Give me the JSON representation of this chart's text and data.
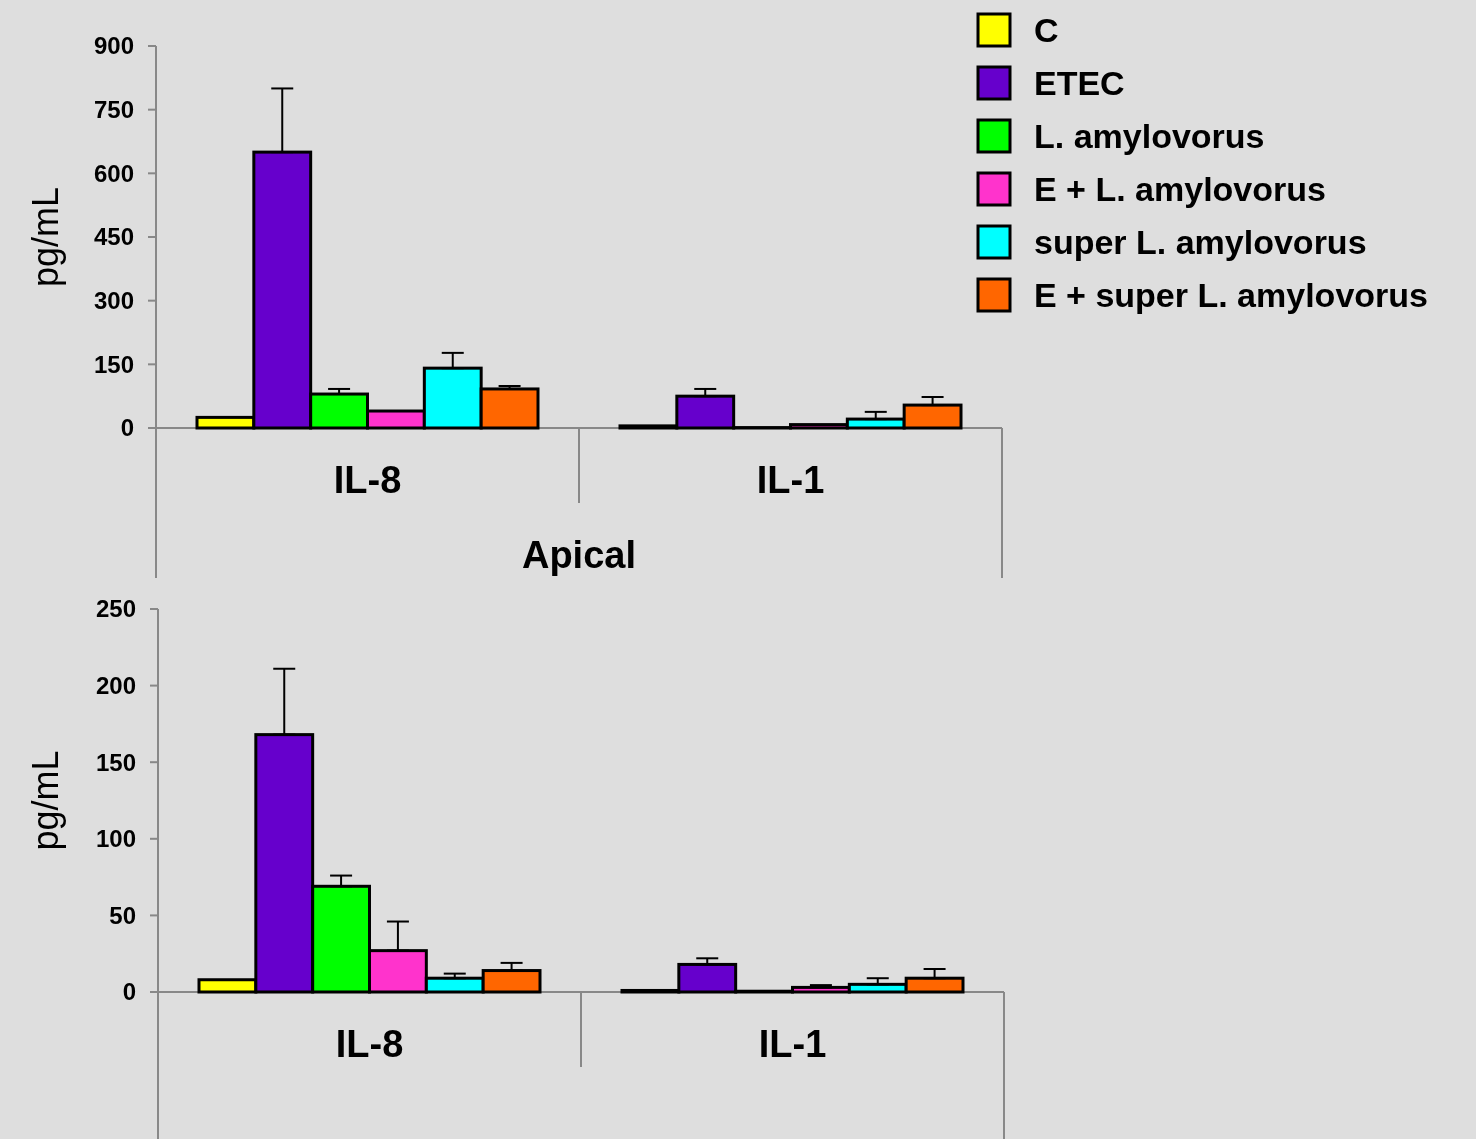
{
  "chart_data": [
    {
      "type": "bar",
      "xlabel": "Apical",
      "ylabel": "pg/mL",
      "categories": [
        "IL-8",
        "IL-1"
      ],
      "ylim": [
        0,
        900
      ],
      "yticks": [
        0,
        150,
        300,
        450,
        600,
        750,
        900
      ],
      "legend": "right",
      "grid": false,
      "series": [
        {
          "name": "C",
          "color": "#ffff00",
          "values": [
            25,
            5
          ],
          "errors": [
            null,
            null
          ]
        },
        {
          "name": "ETEC",
          "color": "#6600cc",
          "values": [
            650,
            75
          ],
          "errors": [
            [
              650,
              800
            ],
            [
              75,
              92
            ]
          ]
        },
        {
          "name": "L. amylovorus",
          "color": "#00ff00",
          "values": [
            80,
            1
          ],
          "errors": [
            [
              80,
              92
            ],
            null
          ]
        },
        {
          "name": "E + L. amylovorus",
          "color": "#ff33cc",
          "values": [
            40,
            8
          ],
          "errors": [
            null,
            null
          ]
        },
        {
          "name": "super  L. amylovorus",
          "color": "#00ffff",
          "values": [
            141,
            21
          ],
          "errors": [
            [
              141,
              177
            ],
            [
              21,
              38
            ]
          ]
        },
        {
          "name": "E + super L. amylovorus",
          "color": "#ff6600",
          "values": [
            92,
            54
          ],
          "errors": [
            [
              92,
              99
            ],
            [
              54,
              73
            ]
          ]
        }
      ]
    },
    {
      "type": "bar",
      "ylabel": "pg/mL",
      "categories": [
        "IL-8",
        "IL-1"
      ],
      "ylim": [
        0,
        250
      ],
      "yticks": [
        0,
        50,
        100,
        150,
        200,
        250
      ],
      "grid": false,
      "series": [
        {
          "color": "#ffff00",
          "values": [
            8,
            1
          ],
          "errors": [
            null,
            null
          ]
        },
        {
          "color": "#6600cc",
          "values": [
            168,
            18
          ],
          "errors": [
            [
              168,
              211
            ],
            [
              18,
              22
            ]
          ]
        },
        {
          "color": "#00ff00",
          "values": [
            69,
            0.5
          ],
          "errors": [
            [
              69,
              76
            ],
            null
          ]
        },
        {
          "color": "#ff33cc",
          "values": [
            27,
            3
          ],
          "errors": [
            [
              27,
              46
            ],
            [
              3,
              4.5
            ]
          ]
        },
        {
          "color": "#00ffff",
          "values": [
            9,
            5
          ],
          "errors": [
            [
              9,
              12
            ],
            [
              5,
              9
            ]
          ]
        },
        {
          "color": "#ff6600",
          "values": [
            14,
            9
          ],
          "errors": [
            [
              14,
              19
            ],
            [
              9,
              15
            ]
          ]
        }
      ]
    }
  ]
}
